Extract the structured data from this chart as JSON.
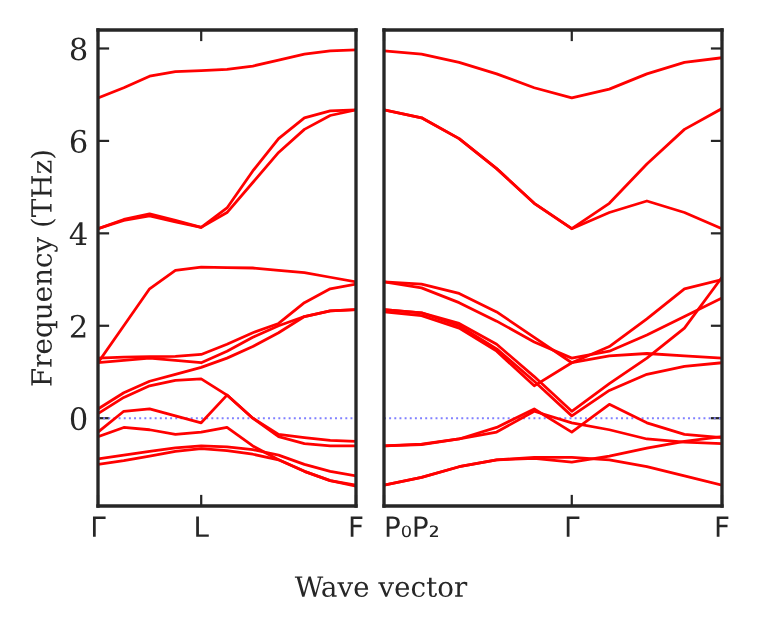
{
  "chart_data": [
    {
      "type": "line",
      "ylabel": "Frequency (THz)",
      "xlabel": "Wave vector",
      "ylim": [
        -1.9,
        8.4
      ],
      "categories": [
        "Γ",
        null,
        null,
        null,
        "L",
        null,
        null,
        null,
        null,
        null,
        "F"
      ],
      "yticks": [
        0,
        2,
        4,
        6,
        8
      ],
      "marker": "none",
      "line_style": "solid",
      "grid": false,
      "legend": false,
      "ref_lines": [
        {
          "axis": "y",
          "value": 0,
          "color": "#8080ff",
          "line_style": "dotted"
        }
      ],
      "series": [
        {
          "color": "#ff0000",
          "values": [
            6.93,
            7.15,
            7.4,
            7.5,
            7.52,
            7.55,
            7.62,
            7.75,
            7.88,
            7.95,
            7.97
          ]
        },
        {
          "color": "#ff0000",
          "values": [
            4.1,
            4.3,
            4.42,
            4.28,
            4.13,
            4.55,
            5.35,
            6.05,
            6.5,
            6.65,
            6.67
          ]
        },
        {
          "color": "#ff0000",
          "values": [
            4.1,
            4.28,
            4.38,
            4.25,
            4.13,
            4.45,
            5.1,
            5.75,
            6.25,
            6.55,
            6.67
          ]
        },
        {
          "color": "#ff0000",
          "values": [
            1.2,
            2.0,
            2.8,
            3.2,
            3.27,
            3.26,
            3.25,
            3.2,
            3.15,
            3.05,
            2.95
          ]
        },
        {
          "color": "#ff0000",
          "values": [
            1.3,
            1.32,
            1.33,
            1.34,
            1.38,
            1.6,
            1.85,
            2.05,
            2.5,
            2.8,
            2.9
          ]
        },
        {
          "color": "#ff0000",
          "values": [
            1.2,
            1.25,
            1.3,
            1.25,
            1.2,
            1.45,
            1.75,
            2.0,
            2.2,
            2.32,
            2.35
          ]
        },
        {
          "color": "#ff0000",
          "values": [
            0.2,
            0.55,
            0.8,
            0.95,
            1.1,
            1.3,
            1.55,
            1.85,
            2.2,
            2.32,
            2.35
          ]
        },
        {
          "color": "#ff0000",
          "values": [
            0.1,
            0.45,
            0.7,
            0.82,
            0.85,
            0.5,
            0.0,
            -0.4,
            -0.55,
            -0.6,
            -0.6
          ]
        },
        {
          "color": "#ff0000",
          "values": [
            -0.3,
            0.15,
            0.2,
            0.05,
            -0.1,
            0.5,
            0.0,
            -0.35,
            -0.42,
            -0.48,
            -0.5
          ]
        },
        {
          "color": "#ff0000",
          "values": [
            -0.4,
            -0.2,
            -0.25,
            -0.35,
            -0.3,
            -0.2,
            -0.6,
            -0.9,
            -1.15,
            -1.35,
            -1.45
          ]
        },
        {
          "color": "#ff0000",
          "values": [
            -1.0,
            -0.92,
            -0.82,
            -0.72,
            -0.66,
            -0.7,
            -0.78,
            -0.9,
            -1.15,
            -1.35,
            -1.47
          ]
        },
        {
          "color": "#ff0000",
          "values": [
            -0.88,
            -0.8,
            -0.72,
            -0.64,
            -0.6,
            -0.62,
            -0.68,
            -0.8,
            -1.0,
            -1.15,
            -1.25
          ]
        }
      ]
    },
    {
      "type": "line",
      "ylim": [
        -1.9,
        8.4
      ],
      "tick_labels": "x",
      "categories": [
        "P₀P₂",
        null,
        null,
        null,
        null,
        "Γ",
        null,
        null,
        null,
        "F"
      ],
      "yticks": [
        0,
        2,
        4,
        6,
        8
      ],
      "marker": "none",
      "line_style": "solid",
      "grid": false,
      "legend": false,
      "ref_lines": [
        {
          "axis": "y",
          "value": 0,
          "color": "#8080ff",
          "line_style": "dotted"
        }
      ],
      "series": [
        {
          "color": "#ff0000",
          "values": [
            7.95,
            7.88,
            7.7,
            7.45,
            7.15,
            6.93,
            7.12,
            7.45,
            7.7,
            7.8
          ]
        },
        {
          "color": "#ff0000",
          "values": [
            6.67,
            6.5,
            6.05,
            5.4,
            4.65,
            4.1,
            4.65,
            5.5,
            6.25,
            6.7
          ]
        },
        {
          "color": "#ff0000",
          "values": [
            6.67,
            6.5,
            6.05,
            5.4,
            4.65,
            4.1,
            4.45,
            4.7,
            4.45,
            4.1
          ]
        },
        {
          "color": "#ff0000",
          "values": [
            2.95,
            2.9,
            2.7,
            2.3,
            1.75,
            1.2,
            1.55,
            2.15,
            2.8,
            3.0
          ]
        },
        {
          "color": "#ff0000",
          "values": [
            2.95,
            2.82,
            2.5,
            2.1,
            1.65,
            1.3,
            1.45,
            1.8,
            2.2,
            2.6
          ]
        },
        {
          "color": "#ff0000",
          "values": [
            2.35,
            2.28,
            2.05,
            1.6,
            0.9,
            0.15,
            0.75,
            1.3,
            1.95,
            3.05
          ]
        },
        {
          "color": "#ff0000",
          "values": [
            2.35,
            2.28,
            2.0,
            1.5,
            0.8,
            0.05,
            0.6,
            0.95,
            1.12,
            1.2
          ]
        },
        {
          "color": "#ff0000",
          "values": [
            2.3,
            2.22,
            1.95,
            1.45,
            0.7,
            1.2,
            1.35,
            1.4,
            1.35,
            1.3
          ]
        },
        {
          "color": "#ff0000",
          "values": [
            -0.6,
            -0.57,
            -0.45,
            -0.2,
            0.2,
            -0.3,
            0.3,
            -0.1,
            -0.35,
            -0.42
          ]
        },
        {
          "color": "#ff0000",
          "values": [
            -0.6,
            -0.56,
            -0.45,
            -0.3,
            0.15,
            -0.1,
            -0.25,
            -0.45,
            -0.52,
            -0.55
          ]
        },
        {
          "color": "#ff0000",
          "values": [
            -1.45,
            -1.28,
            -1.05,
            -0.9,
            -0.85,
            -0.85,
            -0.9,
            -1.05,
            -1.25,
            -1.45
          ]
        },
        {
          "color": "#ff0000",
          "values": [
            -1.45,
            -1.28,
            -1.05,
            -0.9,
            -0.87,
            -0.95,
            -0.82,
            -0.65,
            -0.5,
            -0.4
          ]
        }
      ]
    }
  ]
}
